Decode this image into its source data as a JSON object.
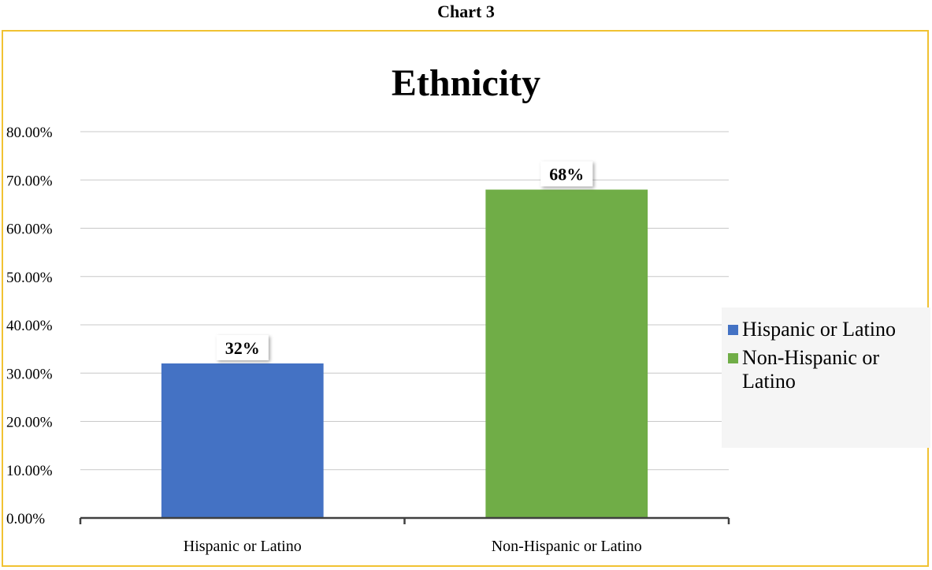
{
  "caption": "Chart 3",
  "chart_data": {
    "type": "bar",
    "title": "Ethnicity",
    "categories": [
      "Hispanic or Latino",
      "Non-Hispanic or Latino"
    ],
    "values": [
      32,
      68
    ],
    "data_labels": [
      "32%",
      "68%"
    ],
    "colors": [
      "#4472c4",
      "#70ad47"
    ],
    "ylim": [
      0,
      80
    ],
    "yticks": [
      0,
      10,
      20,
      30,
      40,
      50,
      60,
      70,
      80
    ],
    "ytick_labels": [
      "0.00%",
      "10.00%",
      "20.00%",
      "30.00%",
      "40.00%",
      "50.00%",
      "60.00%",
      "70.00%",
      "80.00%"
    ],
    "grid": true,
    "legend": {
      "position": "right",
      "entries": [
        "Hispanic or Latino",
        "Non-Hispanic or Latino"
      ]
    }
  }
}
